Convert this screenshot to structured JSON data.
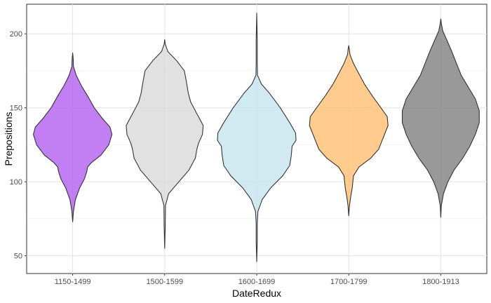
{
  "chart_data": {
    "type": "violin",
    "title": "",
    "xlabel": "DateRedux",
    "ylabel": "Prepositions",
    "ylim": [
      38,
      220
    ],
    "yticks": [
      50,
      100,
      150,
      200
    ],
    "grid": true,
    "categories": [
      "1150-1499",
      "1500-1599",
      "1600-1699",
      "1700-1799",
      "1800-1913"
    ],
    "colors": [
      "#b25ff0",
      "#d9d9d9",
      "#c6e4ee",
      "#ffbf70",
      "#7f7f7f"
    ],
    "series": [
      {
        "category": "1150-1499",
        "min": 73,
        "max": 187,
        "profile": [
          [
            73,
            0.0
          ],
          [
            80,
            0.02
          ],
          [
            88,
            0.07
          ],
          [
            96,
            0.18
          ],
          [
            102,
            0.3
          ],
          [
            107,
            0.36
          ],
          [
            110,
            0.38
          ],
          [
            113,
            0.48
          ],
          [
            118,
            0.72
          ],
          [
            125,
            0.92
          ],
          [
            132,
            1.0
          ],
          [
            137,
            0.95
          ],
          [
            143,
            0.75
          ],
          [
            150,
            0.55
          ],
          [
            158,
            0.38
          ],
          [
            165,
            0.22
          ],
          [
            172,
            0.09
          ],
          [
            178,
            0.02
          ],
          [
            183,
            0.01
          ],
          [
            187,
            0.0
          ]
        ]
      },
      {
        "category": "1500-1599",
        "min": 55,
        "max": 196,
        "profile": [
          [
            55,
            0.0
          ],
          [
            70,
            0.01
          ],
          [
            84,
            0.02
          ],
          [
            92,
            0.1
          ],
          [
            100,
            0.36
          ],
          [
            108,
            0.62
          ],
          [
            116,
            0.78
          ],
          [
            122,
            0.82
          ],
          [
            126,
            0.86
          ],
          [
            132,
            0.96
          ],
          [
            138,
            0.98
          ],
          [
            146,
            0.82
          ],
          [
            154,
            0.66
          ],
          [
            160,
            0.6
          ],
          [
            168,
            0.55
          ],
          [
            175,
            0.5
          ],
          [
            182,
            0.3
          ],
          [
            188,
            0.08
          ],
          [
            193,
            0.01
          ],
          [
            196,
            0.0
          ]
        ]
      },
      {
        "category": "1600-1699",
        "min": 46,
        "max": 214,
        "profile": [
          [
            46,
            0.0
          ],
          [
            60,
            0.01
          ],
          [
            72,
            0.01
          ],
          [
            80,
            0.03
          ],
          [
            88,
            0.14
          ],
          [
            96,
            0.36
          ],
          [
            104,
            0.66
          ],
          [
            111,
            0.84
          ],
          [
            118,
            0.88
          ],
          [
            124,
            0.9
          ],
          [
            128,
            1.0
          ],
          [
            133,
            0.99
          ],
          [
            140,
            0.84
          ],
          [
            150,
            0.6
          ],
          [
            160,
            0.32
          ],
          [
            166,
            0.12
          ],
          [
            172,
            0.02
          ],
          [
            180,
            0.01
          ],
          [
            195,
            0.01
          ],
          [
            214,
            0.0
          ]
        ]
      },
      {
        "category": "1700-1799",
        "min": 77,
        "max": 192,
        "profile": [
          [
            77,
            0.0
          ],
          [
            84,
            0.02
          ],
          [
            90,
            0.05
          ],
          [
            96,
            0.09
          ],
          [
            104,
            0.12
          ],
          [
            110,
            0.26
          ],
          [
            116,
            0.56
          ],
          [
            122,
            0.76
          ],
          [
            130,
            0.88
          ],
          [
            138,
            1.0
          ],
          [
            144,
            0.98
          ],
          [
            150,
            0.82
          ],
          [
            158,
            0.6
          ],
          [
            166,
            0.4
          ],
          [
            174,
            0.24
          ],
          [
            180,
            0.12
          ],
          [
            186,
            0.03
          ],
          [
            190,
            0.01
          ],
          [
            192,
            0.0
          ]
        ]
      },
      {
        "category": "1800-1913",
        "min": 76,
        "max": 210,
        "profile": [
          [
            76,
            0.0
          ],
          [
            84,
            0.01
          ],
          [
            92,
            0.07
          ],
          [
            100,
            0.18
          ],
          [
            108,
            0.34
          ],
          [
            116,
            0.56
          ],
          [
            124,
            0.74
          ],
          [
            132,
            0.88
          ],
          [
            140,
            0.98
          ],
          [
            148,
            0.98
          ],
          [
            156,
            0.88
          ],
          [
            164,
            0.7
          ],
          [
            172,
            0.52
          ],
          [
            180,
            0.4
          ],
          [
            188,
            0.28
          ],
          [
            196,
            0.15
          ],
          [
            202,
            0.05
          ],
          [
            207,
            0.01
          ],
          [
            210,
            0.0
          ]
        ]
      }
    ]
  }
}
